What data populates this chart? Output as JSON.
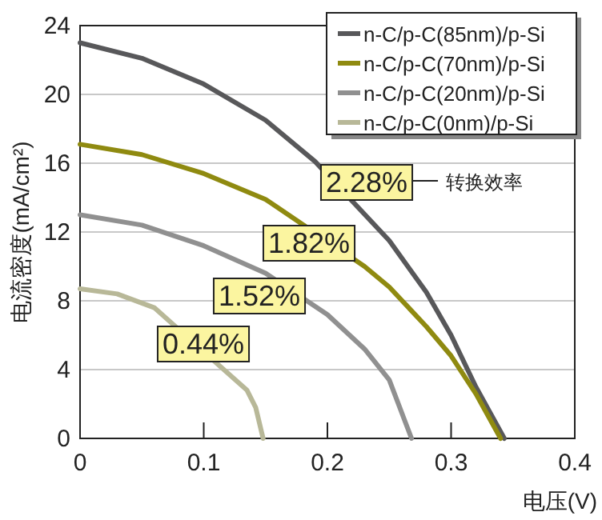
{
  "chart_data": {
    "type": "line",
    "xlabel": "电压(V)",
    "ylabel": "电流密度(mA/cm²)",
    "xlim": [
      0,
      0.4
    ],
    "xticks": [
      0,
      0.1,
      0.2,
      0.3,
      0.4
    ],
    "ylim": [
      0,
      24
    ],
    "yticks": [
      0,
      4,
      8,
      12,
      16,
      20,
      24
    ],
    "grid": "y",
    "legend": "top right",
    "marker": "none",
    "line_style": "solid",
    "series": [
      {
        "name": "n-C/p-C(85nm)/p-Si",
        "color": "#58585a",
        "x": [
          0,
          0.05,
          0.1,
          0.15,
          0.19,
          0.25,
          0.28,
          0.3,
          0.32,
          0.343
        ],
        "values": [
          23,
          22.1,
          20.6,
          18.5,
          16.1,
          11.5,
          8.5,
          6,
          3,
          0
        ]
      },
      {
        "name": "n-C/p-C(70nm)/p-Si",
        "color": "#8f8a10",
        "x": [
          0,
          0.05,
          0.1,
          0.15,
          0.23,
          0.25,
          0.28,
          0.3,
          0.32,
          0.34
        ],
        "values": [
          17.1,
          16.5,
          15.4,
          13.9,
          10.0,
          8.8,
          6.5,
          4.8,
          2.6,
          0
        ]
      },
      {
        "name": "n-C/p-C(20nm)/p-Si",
        "color": "#909090",
        "x": [
          0,
          0.05,
          0.1,
          0.15,
          0.2,
          0.23,
          0.25,
          0.268
        ],
        "values": [
          13,
          12.4,
          11.2,
          9.6,
          7.2,
          5.2,
          3.4,
          0
        ]
      },
      {
        "name": "n-C/p-C(0nm)/p-Si",
        "color": "#b8b898",
        "x": [
          0,
          0.03,
          0.06,
          0.135,
          0.142,
          0.148
        ],
        "values": [
          8.7,
          8.4,
          7.6,
          2.8,
          1.8,
          0
        ]
      }
    ],
    "annotations": [
      "2.28%",
      "1.82%",
      "1.52%",
      "0.44%",
      "转换效率"
    ]
  }
}
